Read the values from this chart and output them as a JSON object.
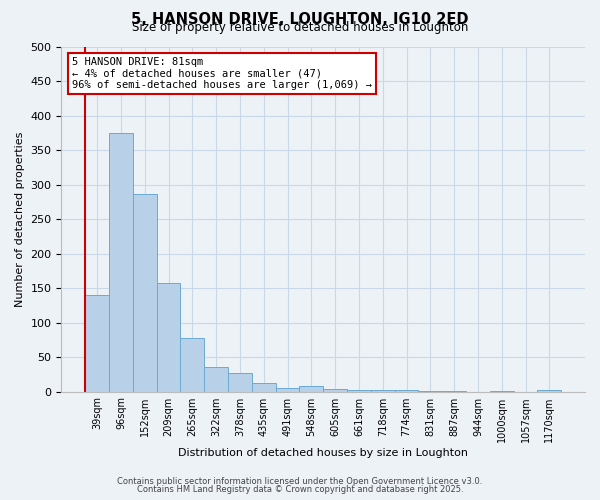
{
  "title1": "5, HANSON DRIVE, LOUGHTON, IG10 2ED",
  "title2": "Size of property relative to detached houses in Loughton",
  "xlabel": "Distribution of detached houses by size in Loughton",
  "ylabel": "Number of detached properties",
  "bar_values": [
    140,
    375,
    287,
    158,
    78,
    36,
    27,
    12,
    5,
    8,
    4,
    3,
    2,
    2,
    1,
    1,
    0,
    1,
    0,
    3
  ],
  "bar_labels": [
    "39sqm",
    "96sqm",
    "152sqm",
    "209sqm",
    "265sqm",
    "322sqm",
    "378sqm",
    "435sqm",
    "491sqm",
    "548sqm",
    "605sqm",
    "661sqm",
    "718sqm",
    "774sqm",
    "831sqm",
    "887sqm",
    "944sqm",
    "1000sqm",
    "1057sqm",
    "1170sqm"
  ],
  "bar_color": "#b8d0e8",
  "bar_edge_color": "#6aaad4",
  "highlight_color": "#cc0000",
  "annotation_text": "5 HANSON DRIVE: 81sqm\n← 4% of detached houses are smaller (47)\n96% of semi-detached houses are larger (1,069) →",
  "annotation_box_color": "#cc0000",
  "ylim": [
    0,
    500
  ],
  "yticks": [
    0,
    50,
    100,
    150,
    200,
    250,
    300,
    350,
    400,
    450,
    500
  ],
  "grid_color": "#c8d8e8",
  "bg_color": "#edf2f7",
  "footer1": "Contains HM Land Registry data © Crown copyright and database right 2025.",
  "footer2": "Contains public sector information licensed under the Open Government Licence v3.0."
}
